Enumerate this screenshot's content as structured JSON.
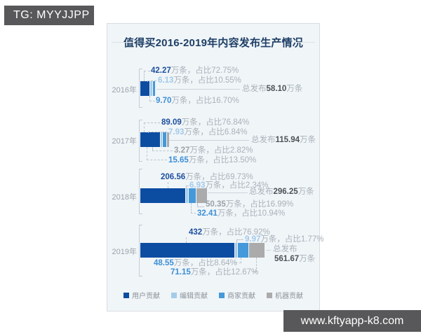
{
  "watermarks": {
    "top_left": "TG: MYYJJPP",
    "bottom_right": "www.kftyapp-k8.com"
  },
  "chart": {
    "title": "值得买2016-2019年内容发布生产情况"
  },
  "chart_data": {
    "type": "bar",
    "variant": "horizontal-stacked",
    "title": "值得买2016-2019年内容发布生产情况",
    "unit": "万条",
    "categories": [
      "2016年",
      "2017年",
      "2018年",
      "2019年"
    ],
    "series": [
      {
        "name": "用户贡献",
        "color": "#0c4da2",
        "values": [
          42.27,
          89.09,
          206.56,
          432
        ],
        "pct": [
          "72.75%",
          "76.84%",
          "69.73%",
          "76.92%"
        ]
      },
      {
        "name": "编辑贡献",
        "color": "#a5cbe9",
        "values": [
          6.13,
          7.93,
          6.93,
          9.97
        ],
        "pct": [
          "10.55%",
          "6.84%",
          "2.34%",
          "1.77%"
        ]
      },
      {
        "name": "商家贡献",
        "color": "#4599da",
        "values": [
          9.7,
          15.65,
          32.41,
          48.55
        ],
        "pct": [
          "16.70%",
          "13.50%",
          "10.94%",
          "8.64%"
        ]
      },
      {
        "name": "机器贡献",
        "color": "#ababab",
        "values": [
          0,
          3.27,
          50.35,
          71.15
        ],
        "pct": [
          "",
          "2.82%",
          "16.99%",
          "12.67%"
        ]
      }
    ],
    "totals": [
      58.1,
      115.94,
      296.25,
      561.67
    ],
    "legend_position": "bottom",
    "grid": false
  },
  "rows": [
    {
      "year": "2016年",
      "labels": [
        {
          "value": "42.27",
          "suffix": "万条，占比72.75%",
          "series": "用户贡献",
          "color": "#1d4f9e"
        },
        {
          "value": "6.13",
          "suffix": "万条，占比10.55%",
          "series": "编辑贡献",
          "color": "#a3c9e8"
        },
        {
          "value": "9.70",
          "suffix": "万条，占比16.70%",
          "series": "商家贡献",
          "color": "#3d8fd6"
        }
      ],
      "total": {
        "prefix": "总发布",
        "value": "58.10",
        "unit": "万条"
      }
    },
    {
      "year": "2017年",
      "labels": [
        {
          "value": "89.09",
          "suffix": "万条，占比76.84%",
          "series": "用户贡献",
          "color": "#1d4f9e"
        },
        {
          "value": "7.93",
          "suffix": "万条，占比6.84%",
          "series": "编辑贡献",
          "color": "#a3c9e8"
        },
        {
          "value": "3.27",
          "suffix": "万条，占比2.82%",
          "series": "机器贡献",
          "color": "#9aa2a8"
        },
        {
          "value": "15.65",
          "suffix": "万条，占比13.50%",
          "series": "商家贡献",
          "color": "#3d8fd6"
        }
      ],
      "total": {
        "prefix": "总发布",
        "value": "115.94",
        "unit": "万条"
      }
    },
    {
      "year": "2018年",
      "labels": [
        {
          "value": "206.56",
          "suffix": "万条，占比69.73%",
          "series": "用户贡献",
          "color": "#1d4f9e"
        },
        {
          "value": "6.93",
          "suffix": "万条，占比2.34%",
          "series": "编辑贡献",
          "color": "#a3c9e8"
        },
        {
          "value": "50.35",
          "suffix": "万条，占比16.99%",
          "series": "机器贡献",
          "color": "#9aa2a8"
        },
        {
          "value": "32.41",
          "suffix": "万条，占比10.94%",
          "series": "商家贡献",
          "color": "#3d8fd6"
        }
      ],
      "total": {
        "prefix": "总发布",
        "value": "296.25",
        "unit": "万条"
      }
    },
    {
      "year": "2019年",
      "labels": [
        {
          "value": "432",
          "suffix": "万条，占比76.92%",
          "series": "用户贡献",
          "color": "#1d4f9e"
        },
        {
          "value": "9.97",
          "suffix": "万条，占比1.77%",
          "series": "编辑贡献",
          "color": "#a3c9e8"
        },
        {
          "value": "48.55",
          "suffix": "万条，占比8.64%",
          "series": "商家贡献",
          "color": "#3d8fd6"
        },
        {
          "value": "71.15",
          "suffix": "万条，占比12.67%",
          "series": "机器贡献",
          "color": "#3d8fd6"
        }
      ],
      "total": {
        "prefix": "总发布",
        "value": "561.67",
        "unit": "万条"
      }
    }
  ]
}
